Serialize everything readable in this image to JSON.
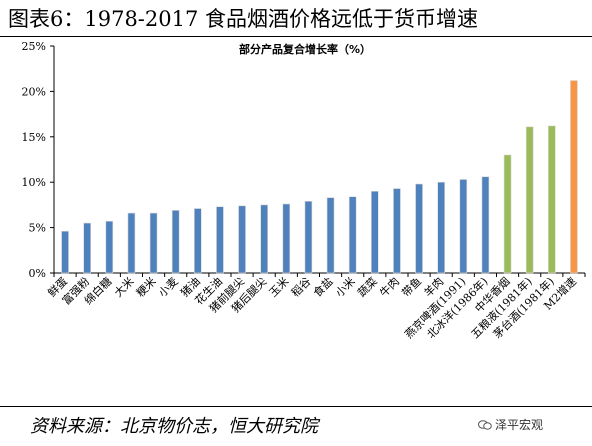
{
  "header": {
    "title": "图表6：1978-2017 食品烟酒价格远低于货币增速"
  },
  "footer": {
    "source": "资料来源：北京物价志，恒大研究院",
    "watermark": "泽平宏观",
    "watermark_icon": "wechat-icon"
  },
  "chart_data": {
    "type": "bar",
    "title": "部分产品复合增长率（%）",
    "xlabel": "",
    "ylabel": "",
    "ylim": [
      0,
      25
    ],
    "yticks": [
      "0%",
      "5%",
      "10%",
      "15%",
      "20%",
      "25%"
    ],
    "grid": false,
    "legend": "none",
    "categories": [
      "鲜蛋",
      "富强粉",
      "绵白糖",
      "大米",
      "粳米",
      "小麦",
      "猪油",
      "花生油",
      "猪前腿尖",
      "猪后腿尖",
      "玉米",
      "稻谷",
      "食盐",
      "小米",
      "蔬菜",
      "牛肉",
      "带鱼",
      "羊肉",
      "燕京啤酒(1991)",
      "北冰洋(1986年)",
      "中华香烟",
      "五粮液(1981年)",
      "茅台酒(1981年)",
      "M2增速"
    ],
    "values": [
      4.6,
      5.5,
      5.7,
      6.6,
      6.6,
      6.9,
      7.1,
      7.3,
      7.4,
      7.5,
      7.6,
      7.9,
      8.3,
      8.4,
      9.0,
      9.3,
      9.8,
      10.0,
      10.3,
      10.6,
      13.0,
      16.1,
      16.2,
      21.2
    ],
    "bar_colors": [
      "#4f81bd",
      "#4f81bd",
      "#4f81bd",
      "#4f81bd",
      "#4f81bd",
      "#4f81bd",
      "#4f81bd",
      "#4f81bd",
      "#4f81bd",
      "#4f81bd",
      "#4f81bd",
      "#4f81bd",
      "#4f81bd",
      "#4f81bd",
      "#4f81bd",
      "#4f81bd",
      "#4f81bd",
      "#4f81bd",
      "#4f81bd",
      "#4f81bd",
      "#9bbb59",
      "#9bbb59",
      "#9bbb59",
      "#f79646"
    ]
  }
}
